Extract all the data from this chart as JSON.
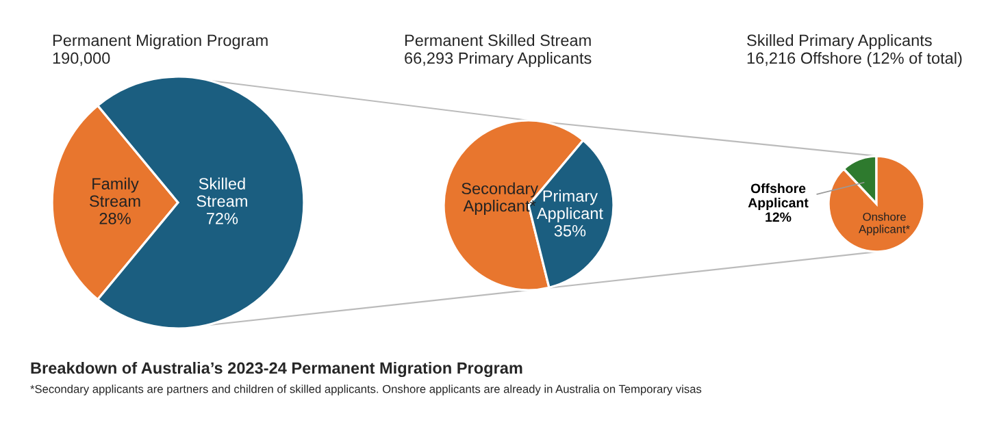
{
  "chart_data": [
    {
      "type": "pie",
      "title": "Permanent Migration Program",
      "subtitle": "190,000",
      "categories": [
        "Family Stream",
        "Skilled Stream"
      ],
      "values": [
        28,
        72
      ],
      "value_labels": [
        "28%",
        "72%"
      ],
      "colors": [
        "#e8762e",
        "#1b5e80"
      ],
      "annotations": [
        "Breakdown of Australia’s 2023-24 Permanent Migration Program",
        "*Secondary applicants are partners and children of skilled applicants. Onshore applicants are already in Australia on Temporary visas"
      ]
    },
    {
      "type": "pie",
      "title": "Permanent Skilled Stream",
      "subtitle": "66,293 Primary Applicants",
      "categories": [
        "Secondary Applicant*",
        "Primary Applicant"
      ],
      "values": [
        65,
        35
      ],
      "value_labels": [
        null,
        "35%"
      ],
      "colors": [
        "#e8762e",
        "#1b5e80"
      ]
    },
    {
      "type": "pie",
      "title": "Skilled Primary Applicants",
      "subtitle": "16,216 Offshore (12% of total)",
      "categories": [
        "Offshore Applicant",
        "Onshore Applicant*"
      ],
      "values": [
        12,
        88
      ],
      "value_labels": [
        "12%",
        null
      ],
      "colors": [
        "#2e7a2e",
        "#e8762e"
      ]
    }
  ]
}
